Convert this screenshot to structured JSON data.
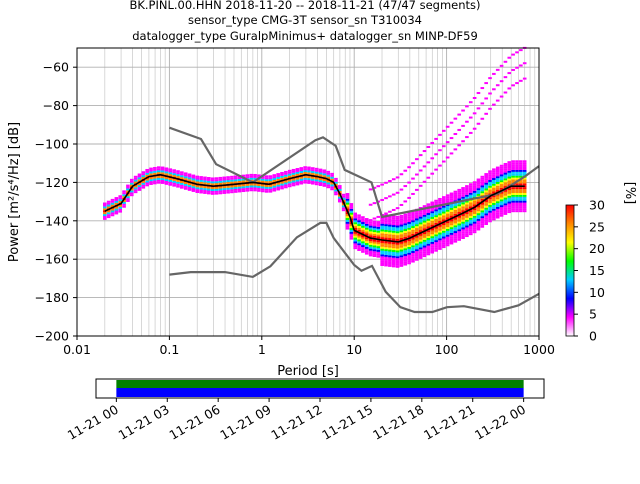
{
  "figure": {
    "title_lines": [
      "BK.PINL.00.HHN   2018-11-20 -- 2018-11-21  (47/47 segments)",
      "sensor_type CMG-3T sensor_sn T310034",
      "datalogger_type GuralpMinimus+ datalogger_sn MINP-DF59"
    ]
  },
  "chart_data": [
    {
      "type": "heatmap",
      "title": "BK.PINL.00.HHN   2018-11-20 -- 2018-11-21  (47/47 segments)",
      "xlabel": "Period [s]",
      "ylabel": "Power [m²/s⁴/Hz] [dB]",
      "x_scale": "log",
      "xlim": [
        0.01,
        1000
      ],
      "ylim": [
        -200,
        -50
      ],
      "grid": true,
      "x_tick_labels": [
        "0.01",
        "0.1",
        "1",
        "10",
        "100",
        "1000"
      ],
      "x_ticks": [
        0.01,
        0.1,
        1,
        10,
        100,
        1000
      ],
      "y_tick_labels": [
        "−200",
        "−180",
        "−160",
        "−140",
        "−120",
        "−100",
        "−80",
        "−60"
      ],
      "y_ticks": [
        -200,
        -180,
        -160,
        -140,
        -120,
        -100,
        -80,
        -60
      ],
      "colorbar": {
        "label": "[%]",
        "min": 0,
        "max": 30,
        "tick_labels": [
          "0",
          "5",
          "10",
          "15",
          "20",
          "25",
          "30"
        ],
        "ticks": [
          0,
          5,
          10,
          15,
          20,
          25,
          30
        ],
        "colors": [
          "#ffffff",
          "#ff00ff",
          "#0000ff",
          "#00ccff",
          "#00ff00",
          "#ffff00",
          "#ff8800",
          "#ff0000"
        ]
      },
      "series": [
        {
          "role": "noise-model-high",
          "color": "#666666",
          "points": [
            [
              0.1,
              -91.5
            ],
            [
              0.22,
              -97.4
            ],
            [
              0.32,
              -110.5
            ],
            [
              0.8,
              -120
            ],
            [
              3.8,
              -98
            ],
            [
              4.6,
              -96.5
            ],
            [
              6.3,
              -101
            ],
            [
              7.9,
              -113.5
            ],
            [
              15.4,
              -120
            ],
            [
              20,
              -138
            ],
            [
              354,
              -126
            ],
            [
              700,
              -117
            ],
            [
              1000,
              -111.5
            ]
          ]
        },
        {
          "role": "noise-model-low",
          "color": "#666666",
          "points": [
            [
              0.1,
              -168
            ],
            [
              0.17,
              -166.7
            ],
            [
              0.4,
              -166.7
            ],
            [
              0.8,
              -169.2
            ],
            [
              1.24,
              -163.7
            ],
            [
              2.4,
              -148.6
            ],
            [
              4.3,
              -141.1
            ],
            [
              5,
              -141.1
            ],
            [
              6,
              -149
            ],
            [
              10,
              -163
            ],
            [
              12,
              -166
            ],
            [
              15.6,
              -163.5
            ],
            [
              21.9,
              -177
            ],
            [
              31.6,
              -185
            ],
            [
              45,
              -187.5
            ],
            [
              70,
              -187.5
            ],
            [
              101,
              -185
            ],
            [
              154,
              -184.5
            ],
            [
              328,
              -187.5
            ],
            [
              600,
              -184
            ],
            [
              1000,
              -178
            ]
          ]
        },
        {
          "role": "mean",
          "color": "#000000",
          "points": [
            [
              0.02,
              -135
            ],
            [
              0.03,
              -131
            ],
            [
              0.04,
              -122
            ],
            [
              0.06,
              -117
            ],
            [
              0.08,
              -116
            ],
            [
              0.12,
              -118
            ],
            [
              0.2,
              -121
            ],
            [
              0.3,
              -122
            ],
            [
              0.5,
              -121
            ],
            [
              0.8,
              -120
            ],
            [
              1.2,
              -121
            ],
            [
              2,
              -118
            ],
            [
              3,
              -116
            ],
            [
              4,
              -117
            ],
            [
              5,
              -118
            ],
            [
              6,
              -120
            ],
            [
              7,
              -126
            ],
            [
              9,
              -138
            ],
            [
              10,
              -145
            ],
            [
              15,
              -149
            ],
            [
              20,
              -150
            ],
            [
              30,
              -151
            ],
            [
              40,
              -149
            ],
            [
              60,
              -145
            ],
            [
              100,
              -140
            ],
            [
              150,
              -136
            ],
            [
              200,
              -133
            ],
            [
              300,
              -127
            ],
            [
              500,
              -122
            ],
            [
              700,
              -122
            ]
          ]
        }
      ]
    },
    {
      "type": "timeline",
      "x_tick_labels": [
        "11-21 00",
        "11-21 03",
        "11-21 06",
        "11-21 09",
        "11-21 12",
        "11-21 15",
        "11-21 18",
        "11-21 21",
        "11-22 00"
      ],
      "x_ticks_hours": [
        0,
        3,
        6,
        9,
        12,
        15,
        18,
        21,
        24
      ],
      "xlim_hours": [
        -1.2,
        25.2
      ],
      "coverage_hours": [
        0,
        24
      ],
      "coverage_colors": [
        "#008000",
        "#0000ff"
      ]
    }
  ]
}
